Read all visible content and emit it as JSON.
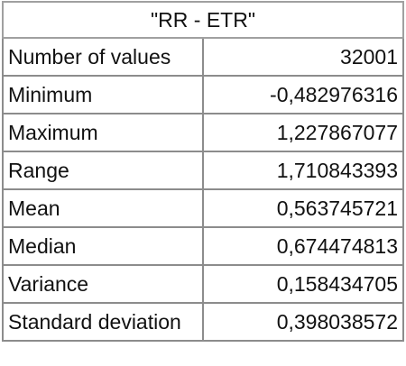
{
  "table": {
    "title": "\"RR - ETR\"",
    "rows": [
      [
        "Number of values",
        "32001"
      ],
      [
        "Minimum",
        "-0,482976316"
      ],
      [
        "Maximum",
        "1,227867077"
      ],
      [
        "Range",
        "1,710843393"
      ],
      [
        "Mean",
        "0,563745721"
      ],
      [
        "Median",
        "0,674474813"
      ],
      [
        "Variance",
        "0,158434705"
      ],
      [
        "Standard deviation",
        "0,398038572"
      ]
    ]
  }
}
